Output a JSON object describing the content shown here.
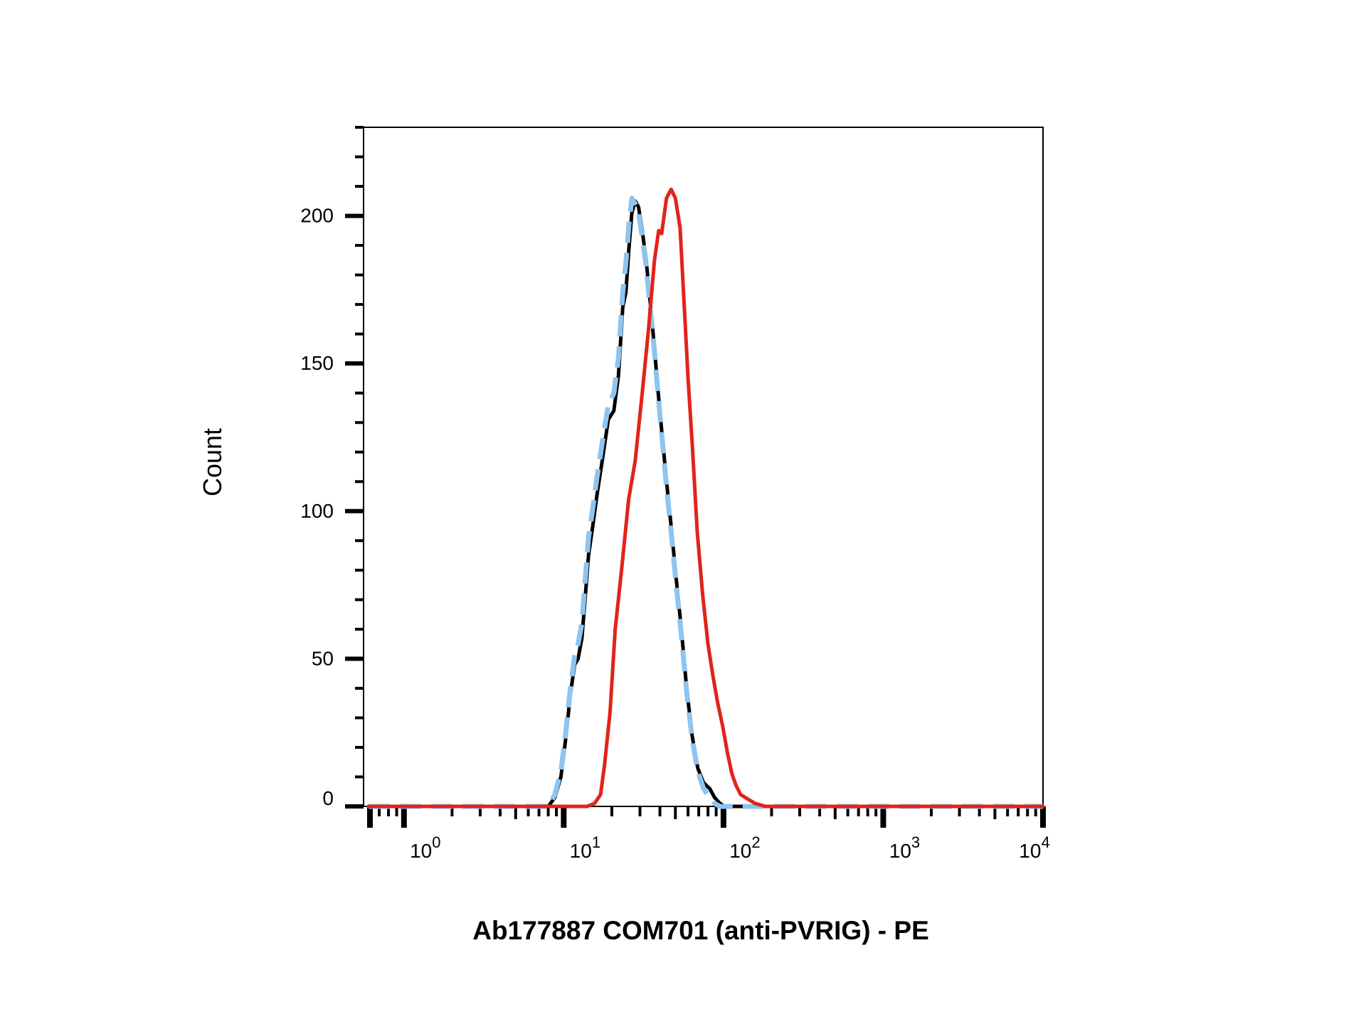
{
  "chart_data": {
    "type": "line",
    "title": "",
    "xlabel": "Ab177887 COM701 (anti-PVRIG) - PE",
    "ylabel": "Count",
    "x_scale": "log",
    "xlim": [
      0.6,
      10000
    ],
    "ylim": [
      0,
      230
    ],
    "grid": false,
    "legend": "none",
    "x_ticks": [
      {
        "value": 1,
        "base": "10",
        "exp": "0"
      },
      {
        "value": 10,
        "base": "10",
        "exp": "1"
      },
      {
        "value": 100,
        "base": "10",
        "exp": "2"
      },
      {
        "value": 1000,
        "base": "10",
        "exp": "3"
      },
      {
        "value": 10000,
        "base": "10",
        "exp": "4"
      }
    ],
    "y_ticks": [
      0,
      50,
      100,
      150,
      200
    ],
    "series": [
      {
        "color": "#000000",
        "style": "solid",
        "x": [
          0.6,
          5,
          8,
          8.8,
          9.6,
          10.3,
          11,
          11.7,
          12.3,
          13,
          13.6,
          14.3,
          15.2,
          16.2,
          17.4,
          19,
          20.6,
          22,
          23.4,
          24.5,
          25.6,
          26.7,
          28,
          29.4,
          31,
          32.8,
          34.6,
          36.7,
          38.9,
          41.4,
          44.2,
          47.2,
          50.6,
          54.5,
          58.8,
          63.6,
          69,
          75,
          82,
          88,
          95,
          102,
          110,
          130,
          10000
        ],
        "y": [
          0,
          0,
          0,
          3,
          10,
          23,
          38,
          48,
          50,
          57,
          70,
          85,
          95,
          106,
          117,
          131,
          134,
          146,
          169,
          174,
          189,
          201,
          205,
          203,
          195,
          185,
          172,
          157,
          141,
          125,
          109,
          94,
          77,
          60,
          40,
          24,
          13,
          8,
          6,
          3,
          1,
          0,
          0,
          0,
          0
        ]
      },
      {
        "color": "#8ec4ef",
        "style": "dashed",
        "x": [
          0.6,
          5,
          8,
          8.8,
          9.6,
          10.3,
          11,
          11.7,
          12.3,
          13,
          13.6,
          14.3,
          15.2,
          16.2,
          17.4,
          19,
          20.6,
          22,
          23.4,
          24.5,
          25.6,
          26.7,
          28,
          29.4,
          31,
          32.8,
          34.6,
          36.7,
          38.9,
          41.4,
          44.2,
          47.2,
          50.6,
          54.5,
          58.8,
          63.6,
          69,
          75,
          82,
          88,
          95,
          102,
          110,
          130,
          10000
        ],
        "y": [
          0,
          0,
          0,
          4,
          12,
          25,
          40,
          51,
          55,
          62,
          76,
          91,
          101,
          112,
          123,
          136,
          140,
          152,
          174,
          184,
          197,
          206,
          204,
          201,
          193,
          183,
          170,
          156,
          140,
          124,
          107,
          92,
          75,
          58,
          39,
          23,
          12,
          6,
          3,
          1,
          0,
          0,
          0,
          0,
          0
        ]
      },
      {
        "color": "#e2231a",
        "style": "solid",
        "x": [
          0.6,
          10,
          14,
          15.6,
          17,
          18,
          19.5,
          21,
          23,
          25.5,
          28,
          31,
          34,
          37,
          39.3,
          41,
          44,
          47,
          50,
          53.5,
          56.5,
          60,
          64,
          68.5,
          74,
          80,
          86,
          92,
          99,
          106,
          113,
          120,
          128,
          137,
          147,
          158,
          170,
          183,
          200,
          250,
          400,
          10000
        ],
        "y": [
          0,
          0,
          0,
          1,
          4,
          14,
          32,
          60,
          80,
          104,
          117,
          140,
          162,
          185,
          195,
          194,
          206,
          209,
          206,
          196,
          172,
          145,
          121,
          93,
          72,
          55,
          44,
          35,
          27,
          18,
          11,
          7,
          4,
          3,
          2,
          1,
          0.5,
          0,
          0,
          0,
          0,
          0
        ]
      }
    ]
  }
}
